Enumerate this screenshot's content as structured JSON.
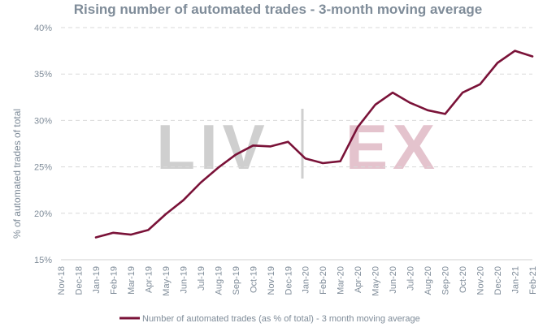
{
  "chart_data": {
    "type": "line",
    "title": "Rising number of automated trades - 3-month moving average",
    "ylabel": "% of automated trades of total",
    "xlabel": "",
    "ylim": [
      15,
      40
    ],
    "yticks": [
      "15%",
      "20%",
      "25%",
      "30%",
      "35%",
      "40%"
    ],
    "ytick_values": [
      15,
      20,
      25,
      30,
      35,
      40
    ],
    "categories": [
      "Nov-18",
      "Dec-18",
      "Jan-19",
      "Feb-19",
      "Mar-19",
      "Apr-19",
      "May-19",
      "Jun-19",
      "Jul-19",
      "Aug-19",
      "Sep-19",
      "Oct-19",
      "Nov-19",
      "Dec-19",
      "Jan-20",
      "Feb-20",
      "Mar-20",
      "Apr-20",
      "May-20",
      "Jun-20",
      "Jul-20",
      "Aug-20",
      "Sep-20",
      "Oct-20",
      "Nov-20",
      "Dec-20",
      "Jan-21",
      "Feb-21"
    ],
    "series": [
      {
        "name": "Number of automated trades (as % of total) - 3 month moving average",
        "color": "#7a1238",
        "values": [
          null,
          null,
          17.4,
          17.9,
          17.7,
          18.2,
          19.9,
          21.4,
          23.3,
          24.9,
          26.3,
          27.3,
          27.2,
          27.7,
          25.9,
          25.4,
          25.6,
          29.3,
          31.7,
          33.0,
          31.9,
          31.1,
          30.7,
          33.0,
          33.9,
          36.2,
          37.5,
          36.9
        ]
      }
    ],
    "grid": true,
    "legend_position": "bottom",
    "watermark": "LIV-EX",
    "watermark_left": "LIV",
    "watermark_right": "EX",
    "watermark_left_color": "#cfcfcf",
    "watermark_right_color": "#e4c3cd"
  }
}
